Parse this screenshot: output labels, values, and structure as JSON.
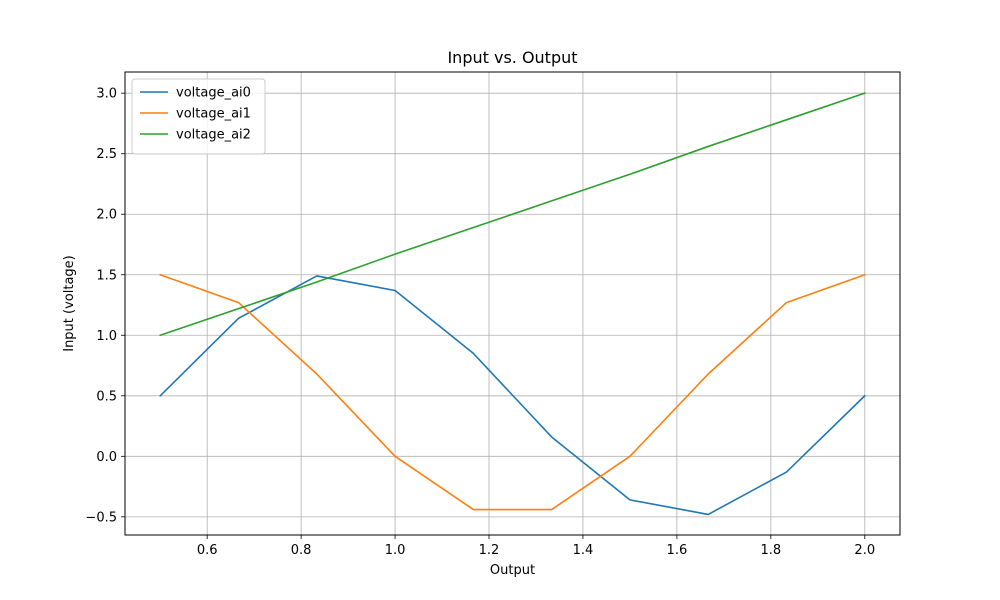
{
  "chart_data": {
    "type": "line",
    "title": "Input vs. Output",
    "xlabel": "Output",
    "ylabel": "Input (voltage)",
    "xlim": [
      0.425,
      2.075
    ],
    "ylim": [
      -0.65,
      3.175
    ],
    "xticks": [
      0.6,
      0.8,
      1.0,
      1.2,
      1.4,
      1.6,
      1.8,
      2.0
    ],
    "xtick_labels": [
      "0.6",
      "0.8",
      "1.0",
      "1.2",
      "1.4",
      "1.6",
      "1.8",
      "2.0"
    ],
    "yticks": [
      -0.5,
      0.0,
      0.5,
      1.0,
      1.5,
      2.0,
      2.5,
      3.0
    ],
    "ytick_labels": [
      "−0.5",
      "0.0",
      "0.5",
      "1.0",
      "1.5",
      "2.0",
      "2.5",
      "3.0"
    ],
    "grid": true,
    "legend_position": "top-left",
    "x": [
      0.5,
      0.6667,
      0.8333,
      1.0,
      1.1667,
      1.3333,
      1.5,
      1.6667,
      1.8333,
      2.0
    ],
    "series": [
      {
        "name": "voltage_ai0",
        "color": "#1f77b4",
        "values": [
          0.5,
          1.14,
          1.49,
          1.37,
          0.85,
          0.16,
          -0.36,
          -0.48,
          -0.13,
          0.5
        ]
      },
      {
        "name": "voltage_ai1",
        "color": "#ff7f0e",
        "values": [
          1.5,
          1.27,
          0.68,
          0.0,
          -0.44,
          -0.44,
          0.0,
          0.68,
          1.27,
          1.5
        ]
      },
      {
        "name": "voltage_ai2",
        "color": "#2ca02c",
        "values": [
          1.0,
          1.22,
          1.44,
          1.67,
          1.89,
          2.11,
          2.33,
          2.56,
          2.78,
          3.0
        ]
      }
    ]
  }
}
